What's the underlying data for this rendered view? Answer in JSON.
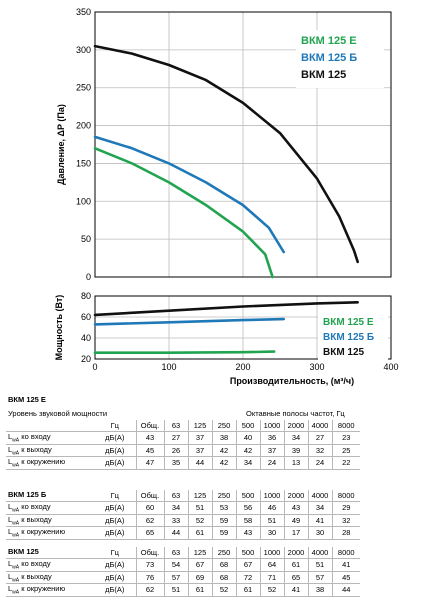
{
  "chart_data": [
    {
      "type": "line",
      "ylabel": "Давление, ΔP (Па)",
      "xlim": [
        0,
        400
      ],
      "ylim": [
        0,
        350
      ],
      "yticks": [
        0,
        50,
        100,
        150,
        200,
        250,
        300,
        350
      ],
      "grid": true,
      "legend_position": "top-right",
      "series": [
        {
          "name": "ВКМ 125 Е",
          "color": "#21a44f",
          "x": [
            0,
            50,
            100,
            150,
            200,
            230,
            240
          ],
          "y": [
            170,
            150,
            125,
            95,
            60,
            30,
            0
          ]
        },
        {
          "name": "ВКМ 125 Б",
          "color": "#1f78b8",
          "x": [
            0,
            50,
            100,
            150,
            200,
            235,
            255
          ],
          "y": [
            185,
            170,
            150,
            125,
            95,
            65,
            33
          ]
        },
        {
          "name": "ВКМ 125",
          "color": "#111111",
          "x": [
            0,
            50,
            100,
            150,
            200,
            250,
            300,
            330,
            350,
            355
          ],
          "y": [
            305,
            295,
            280,
            260,
            230,
            190,
            130,
            80,
            35,
            20
          ]
        }
      ]
    },
    {
      "type": "line",
      "ylabel": "Мощность (Вт)",
      "xlabel": "Производительность, (м³/ч)",
      "xlim": [
        0,
        400
      ],
      "ylim": [
        20,
        80
      ],
      "yticks": [
        20,
        40,
        60,
        80
      ],
      "xticks": [
        0,
        100,
        200,
        300,
        400
      ],
      "grid": true,
      "legend_position": "center-right",
      "series": [
        {
          "name": "ВКМ 125 Е",
          "color": "#21a44f",
          "x": [
            0,
            100,
            200,
            242
          ],
          "y": [
            26,
            26,
            26.5,
            27
          ]
        },
        {
          "name": "ВКМ 125 Б",
          "color": "#1f78b8",
          "x": [
            0,
            100,
            200,
            255
          ],
          "y": [
            53,
            55,
            57,
            58
          ]
        },
        {
          "name": "ВКМ 125",
          "color": "#111111",
          "x": [
            0,
            100,
            200,
            300,
            355
          ],
          "y": [
            62,
            66,
            70,
            73,
            74
          ]
        }
      ]
    }
  ],
  "tables": [
    {
      "title": "ВКМ 125 Е",
      "subtitle": "Уровень звуковой мощности",
      "band_title": "Октавные полосы частот, Гц",
      "header": [
        "Гц",
        "Общ.",
        "63",
        "125",
        "250",
        "500",
        "1000",
        "2000",
        "4000",
        "8000"
      ],
      "rows": [
        {
          "label": "L",
          "sub": "wA",
          "rest": " ко входу",
          "unit": "дБ(А)",
          "values": [
            "43",
            "27",
            "37",
            "38",
            "40",
            "36",
            "34",
            "27",
            "23"
          ]
        },
        {
          "label": "L",
          "sub": "wA",
          "rest": " к выходу",
          "unit": "дБ(А)",
          "values": [
            "45",
            "26",
            "37",
            "42",
            "42",
            "37",
            "39",
            "32",
            "25"
          ]
        },
        {
          "label": "L",
          "sub": "wA",
          "rest": " к окружению",
          "unit": "дБ(А)",
          "values": [
            "47",
            "35",
            "44",
            "42",
            "34",
            "24",
            "13",
            "24",
            "22"
          ]
        }
      ]
    },
    {
      "title": "ВКМ 125 Б",
      "header": [
        "Гц",
        "Общ.",
        "63",
        "125",
        "250",
        "500",
        "1000",
        "2000",
        "4000",
        "8000"
      ],
      "rows": [
        {
          "label": "L",
          "sub": "wA",
          "rest": " ко входу",
          "unit": "дБ(А)",
          "values": [
            "60",
            "34",
            "51",
            "53",
            "56",
            "46",
            "43",
            "34",
            "29"
          ]
        },
        {
          "label": "L",
          "sub": "wA",
          "rest": " к выходу",
          "unit": "дБ(А)",
          "values": [
            "62",
            "33",
            "52",
            "59",
            "58",
            "51",
            "49",
            "41",
            "32"
          ]
        },
        {
          "label": "L",
          "sub": "wA",
          "rest": " к окружению",
          "unit": "дБ(А)",
          "values": [
            "65",
            "44",
            "61",
            "59",
            "43",
            "30",
            "17",
            "30",
            "28"
          ]
        }
      ]
    },
    {
      "title": "ВКМ 125",
      "header": [
        "Гц",
        "Общ.",
        "63",
        "125",
        "250",
        "500",
        "1000",
        "2000",
        "4000",
        "8000"
      ],
      "rows": [
        {
          "label": "L",
          "sub": "wA",
          "rest": " ко входу",
          "unit": "дБ(А)",
          "values": [
            "73",
            "54",
            "67",
            "68",
            "67",
            "64",
            "61",
            "51",
            "41"
          ]
        },
        {
          "label": "L",
          "sub": "wA",
          "rest": " к выходу",
          "unit": "дБ(А)",
          "values": [
            "76",
            "57",
            "69",
            "68",
            "72",
            "71",
            "65",
            "57",
            "45"
          ]
        },
        {
          "label": "L",
          "sub": "wA",
          "rest": " к окружению",
          "unit": "дБ(А)",
          "values": [
            "62",
            "51",
            "61",
            "52",
            "61",
            "52",
            "41",
            "38",
            "44"
          ]
        }
      ]
    }
  ]
}
